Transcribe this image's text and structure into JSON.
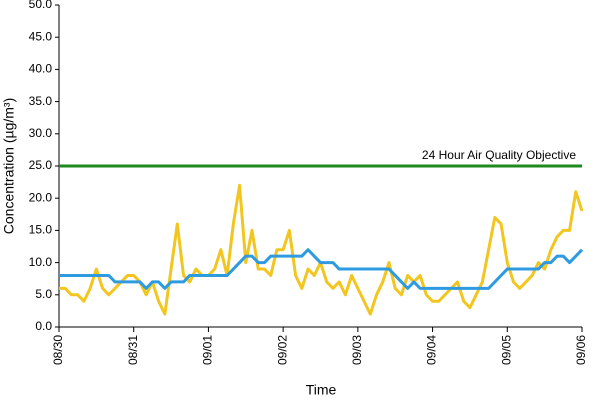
{
  "chart_data": {
    "type": "line",
    "x_label": "Time",
    "y_label": "Concentration (µg/m³)",
    "x": [
      0,
      2,
      4,
      6,
      8,
      10,
      12,
      14,
      16,
      18,
      20,
      22,
      24,
      26,
      28,
      30,
      32,
      34,
      36,
      38,
      40,
      42,
      44,
      46,
      48,
      50,
      52,
      54,
      56,
      58,
      60,
      62,
      64,
      66,
      68,
      70,
      72,
      74,
      76,
      78,
      80,
      82,
      84,
      86,
      88,
      90,
      92,
      94,
      96,
      98,
      100,
      102,
      104,
      106,
      108,
      110,
      112,
      114,
      116,
      118,
      120,
      122,
      124,
      126,
      128,
      130,
      132,
      134,
      136,
      138,
      140,
      142,
      144,
      146,
      148,
      150,
      152,
      154,
      156,
      158,
      160,
      162,
      164,
      166,
      168
    ],
    "xlim": [
      0,
      168
    ],
    "xticks": [
      {
        "value": 0,
        "label": "08/30"
      },
      {
        "value": 24,
        "label": "08/31"
      },
      {
        "value": 48,
        "label": "09/01"
      },
      {
        "value": 72,
        "label": "09/02"
      },
      {
        "value": 96,
        "label": "09/03"
      },
      {
        "value": 120,
        "label": "09/04"
      },
      {
        "value": 144,
        "label": "09/05"
      },
      {
        "value": 168,
        "label": "09/06"
      }
    ],
    "ylim": [
      0,
      50
    ],
    "yticks": [
      {
        "value": 0,
        "label": "0.0"
      },
      {
        "value": 5,
        "label": "5.0"
      },
      {
        "value": 10,
        "label": "10.0"
      },
      {
        "value": 15,
        "label": "15.0"
      },
      {
        "value": 20,
        "label": "20.0"
      },
      {
        "value": 25,
        "label": "25.0"
      },
      {
        "value": 30,
        "label": "30.0"
      },
      {
        "value": 35,
        "label": "35.0"
      },
      {
        "value": 40,
        "label": "40.0"
      },
      {
        "value": 45,
        "label": "45.0"
      },
      {
        "value": 50,
        "label": "50.0"
      }
    ],
    "series": [
      {
        "color": "#f2c61f",
        "values": [
          6,
          6,
          5,
          5,
          4,
          6,
          9,
          6,
          5,
          6,
          7,
          8,
          8,
          7,
          5,
          7,
          4,
          2,
          9,
          16,
          8,
          7,
          9,
          8,
          8,
          9,
          12,
          8,
          16,
          22,
          10,
          15,
          9,
          9,
          8,
          12,
          12,
          15,
          8,
          6,
          9,
          8,
          10,
          7,
          6,
          7,
          5,
          8,
          6,
          4,
          2,
          5,
          7,
          10,
          6,
          5,
          8,
          7,
          8,
          5,
          4,
          4,
          5,
          6,
          7,
          4,
          3,
          5,
          7,
          12,
          17,
          16,
          10,
          7,
          6,
          7,
          8,
          10,
          9,
          12,
          14,
          15,
          15,
          21,
          18
        ]
      },
      {
        "color": "#2e9be0",
        "values": [
          8,
          8,
          8,
          8,
          8,
          8,
          8,
          8,
          8,
          7,
          7,
          7,
          7,
          7,
          6,
          7,
          7,
          6,
          7,
          7,
          7,
          8,
          8,
          8,
          8,
          8,
          8,
          8,
          9,
          10,
          11,
          11,
          10,
          10,
          11,
          11,
          11,
          11,
          11,
          11,
          12,
          11,
          10,
          10,
          10,
          9,
          9,
          9,
          9,
          9,
          9,
          9,
          9,
          9,
          8,
          7,
          6,
          7,
          6,
          6,
          6,
          6,
          6,
          6,
          6,
          6,
          6,
          6,
          6,
          6,
          7,
          8,
          9,
          9,
          9,
          9,
          9,
          9,
          10,
          10,
          11,
          11,
          10,
          11,
          12
        ]
      }
    ],
    "reference_lines": [
      {
        "value": 25,
        "label": "24 Hour Air Quality Objective",
        "color": "#1e8a1e"
      }
    ]
  }
}
